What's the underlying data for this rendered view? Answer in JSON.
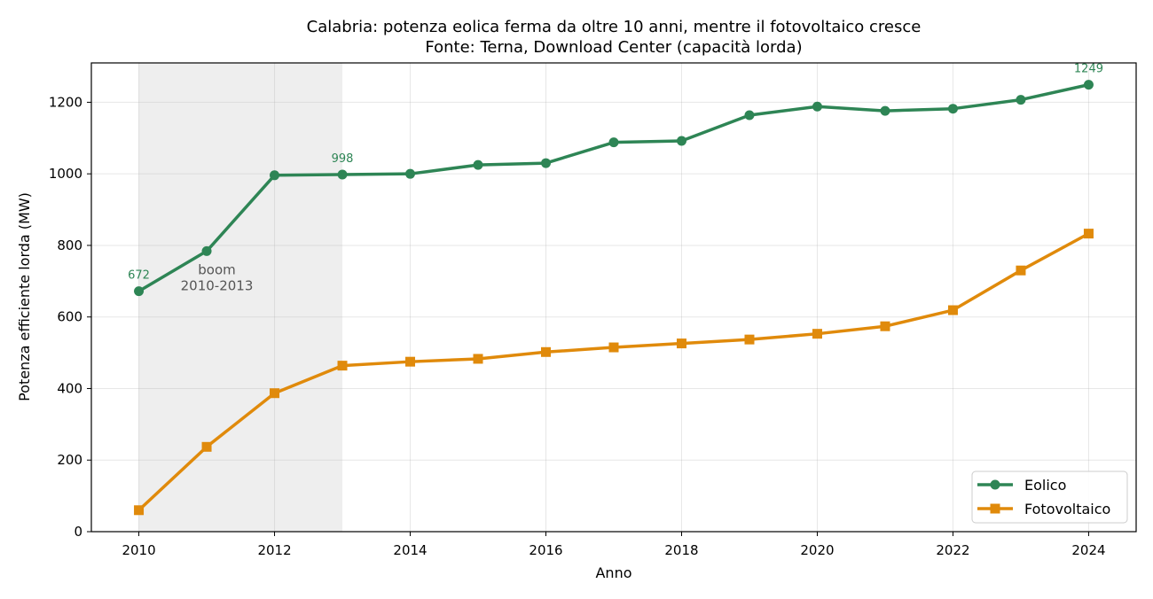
{
  "chart_data": {
    "type": "line",
    "title": "Calabria: potenza eolica ferma da oltre 10 anni, mentre il fotovoltaico cresce",
    "subtitle": "Fonte: Terna, Download Center (capacità lorda)",
    "xlabel": "Anno",
    "ylabel": "Potenza efficiente lorda (MW)",
    "x": [
      2010,
      2011,
      2012,
      2013,
      2014,
      2015,
      2016,
      2017,
      2018,
      2019,
      2020,
      2021,
      2022,
      2023,
      2024
    ],
    "xlim": [
      2009.3,
      2024.7
    ],
    "ylim": [
      0,
      1310
    ],
    "xticks": [
      "2010",
      "2012",
      "2014",
      "2016",
      "2018",
      "2020",
      "2022",
      "2024"
    ],
    "yticks": [
      "0",
      "200",
      "400",
      "600",
      "800",
      "1000",
      "1200"
    ],
    "grid": true,
    "legend_position": "lower right",
    "shaded_span": {
      "x_start": 2010,
      "x_end": 2013,
      "label_line1": "boom",
      "label_line2": "2010-2013"
    },
    "series": [
      {
        "name": "Eolico",
        "color": "#2e8555",
        "marker": "circle",
        "values": [
          672,
          784,
          996,
          998,
          1000,
          1025,
          1030,
          1088,
          1092,
          1164,
          1188,
          1176,
          1182,
          1207,
          1249
        ]
      },
      {
        "name": "Fotovoltaico",
        "color": "#e08a0b",
        "marker": "square",
        "values": [
          60,
          237,
          387,
          464,
          475,
          483,
          502,
          515,
          526,
          537,
          553,
          574,
          619,
          730,
          833
        ]
      }
    ],
    "annotations": [
      {
        "x": 2010,
        "text": "672"
      },
      {
        "x": 2013,
        "text": "998"
      },
      {
        "x": 2024,
        "text": "1249"
      }
    ]
  }
}
